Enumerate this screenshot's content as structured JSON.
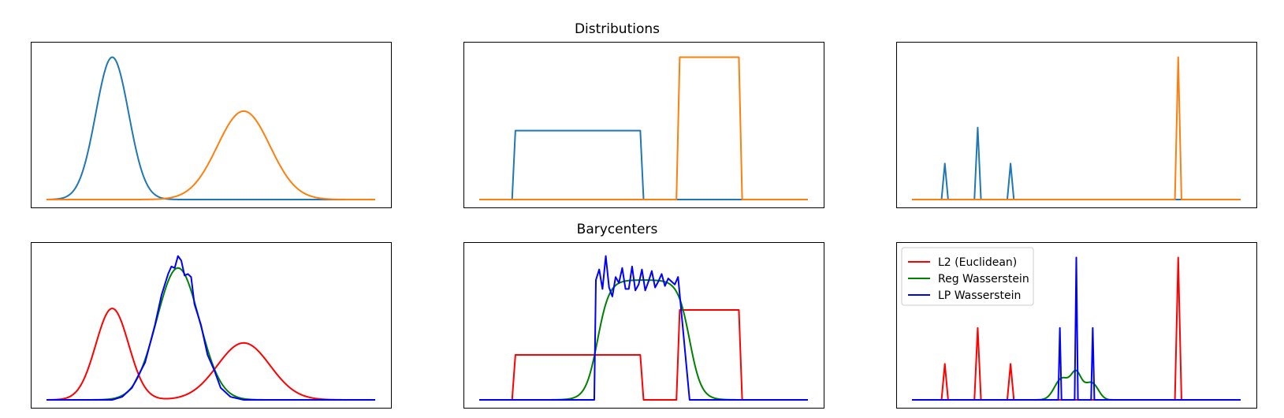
{
  "figure": {
    "row_titles": [
      "Distributions",
      "Barycenters"
    ]
  },
  "chart_data": [
    {
      "type": "line",
      "row": 0,
      "col": 0,
      "title": "",
      "xlabel": "",
      "ylabel": "",
      "xlim": [
        0,
        100
      ],
      "ylim": [
        0,
        1
      ],
      "grid": false,
      "legend": null,
      "series": [
        {
          "color": "#1f77b4",
          "kind": "gauss",
          "mean": 20,
          "sd": 5,
          "amp": 0.95
        },
        {
          "color": "#ff7f0e",
          "kind": "gauss",
          "mean": 60,
          "sd": 8,
          "amp": 0.59
        }
      ]
    },
    {
      "type": "line",
      "row": 0,
      "col": 1,
      "title": "",
      "xlabel": "",
      "ylabel": "",
      "xlim": [
        0,
        100
      ],
      "ylim": [
        0,
        1
      ],
      "grid": false,
      "legend": null,
      "series": [
        {
          "color": "#1f77b4",
          "points": [
            [
              0,
              0
            ],
            [
              10,
              0
            ],
            [
              11,
              0.46
            ],
            [
              49,
              0.46
            ],
            [
              50,
              0
            ],
            [
              100,
              0
            ]
          ]
        },
        {
          "color": "#ff7f0e",
          "points": [
            [
              0,
              0
            ],
            [
              60,
              0
            ],
            [
              61,
              0.95
            ],
            [
              79,
              0.95
            ],
            [
              80,
              0
            ],
            [
              100,
              0
            ]
          ]
        }
      ]
    },
    {
      "type": "line",
      "row": 0,
      "col": 2,
      "title": "",
      "xlabel": "",
      "ylabel": "",
      "xlim": [
        0,
        100
      ],
      "ylim": [
        0,
        1
      ],
      "grid": false,
      "legend": null,
      "series": [
        {
          "color": "#1f77b4",
          "points": [
            [
              0,
              0
            ],
            [
              9,
              0
            ],
            [
              10,
              0.24
            ],
            [
              11,
              0
            ],
            [
              19,
              0
            ],
            [
              20,
              0.48
            ],
            [
              21,
              0
            ],
            [
              29,
              0
            ],
            [
              30,
              0.24
            ],
            [
              31,
              0
            ],
            [
              100,
              0
            ]
          ]
        },
        {
          "color": "#ff7f0e",
          "points": [
            [
              0,
              0
            ],
            [
              80,
              0
            ],
            [
              81,
              0.95
            ],
            [
              82,
              0
            ],
            [
              100,
              0
            ]
          ]
        }
      ]
    },
    {
      "type": "line",
      "row": 1,
      "col": 0,
      "title": "",
      "xlabel": "",
      "ylabel": "",
      "xlim": [
        0,
        100
      ],
      "ylim": [
        0,
        1
      ],
      "grid": false,
      "legend": null,
      "series": [
        {
          "color": "#ff0000",
          "kind": "gauss-sum",
          "components": [
            [
              20,
              5,
              0.61
            ],
            [
              60,
              8,
              0.38
            ]
          ]
        },
        {
          "color": "#008000",
          "kind": "gauss",
          "mean": 40,
          "sd": 6.5,
          "amp": 0.88
        },
        {
          "color": "#0000ff",
          "points": [
            [
              0,
              0
            ],
            [
              20,
              0
            ],
            [
              23,
              0.02
            ],
            [
              26,
              0.08
            ],
            [
              30,
              0.25
            ],
            [
              33,
              0.5
            ],
            [
              35,
              0.7
            ],
            [
              37,
              0.84
            ],
            [
              38,
              0.89
            ],
            [
              39,
              0.88
            ],
            [
              40,
              0.96
            ],
            [
              41,
              0.93
            ],
            [
              42,
              0.83
            ],
            [
              43,
              0.84
            ],
            [
              44,
              0.82
            ],
            [
              45,
              0.64
            ],
            [
              47,
              0.5
            ],
            [
              49,
              0.3
            ],
            [
              51,
              0.2
            ],
            [
              53,
              0.08
            ],
            [
              56,
              0.02
            ],
            [
              60,
              0
            ],
            [
              100,
              0
            ]
          ]
        }
      ]
    },
    {
      "type": "line",
      "row": 1,
      "col": 1,
      "title": "",
      "xlabel": "",
      "ylabel": "",
      "xlim": [
        0,
        100
      ],
      "ylim": [
        0,
        1
      ],
      "grid": false,
      "legend": null,
      "series": [
        {
          "color": "#ff0000",
          "points": [
            [
              0,
              0
            ],
            [
              10,
              0
            ],
            [
              11,
              0.3
            ],
            [
              49,
              0.3
            ],
            [
              50,
              0
            ],
            [
              60,
              0
            ],
            [
              61,
              0.6
            ],
            [
              79,
              0.6
            ],
            [
              80,
              0
            ],
            [
              100,
              0
            ]
          ]
        },
        {
          "color": "#008000",
          "kind": "smooth-box",
          "left": 36,
          "right": 64,
          "width": 1.8,
          "amp": 0.8
        },
        {
          "color": "#0000ff",
          "points": [
            [
              0,
              0
            ],
            [
              35,
              0
            ],
            [
              35.5,
              0.8
            ],
            [
              36.5,
              0.87
            ],
            [
              37.5,
              0.74
            ],
            [
              38.5,
              0.96
            ],
            [
              39.5,
              0.75
            ],
            [
              40.5,
              0.69
            ],
            [
              41.5,
              0.82
            ],
            [
              42.5,
              0.78
            ],
            [
              43.5,
              0.88
            ],
            [
              44.5,
              0.74
            ],
            [
              45.5,
              0.74
            ],
            [
              46.5,
              0.89
            ],
            [
              47.5,
              0.73
            ],
            [
              48.5,
              0.77
            ],
            [
              49.5,
              0.87
            ],
            [
              50.5,
              0.73
            ],
            [
              51.5,
              0.79
            ],
            [
              52.5,
              0.86
            ],
            [
              53.5,
              0.75
            ],
            [
              54.5,
              0.79
            ],
            [
              55.5,
              0.84
            ],
            [
              56.5,
              0.76
            ],
            [
              57.5,
              0.81
            ],
            [
              58.5,
              0.79
            ],
            [
              59.5,
              0.77
            ],
            [
              60.5,
              0.82
            ],
            [
              64,
              0
            ],
            [
              100,
              0
            ]
          ]
        }
      ]
    },
    {
      "type": "line",
      "row": 1,
      "col": 2,
      "title": "",
      "xlabel": "",
      "ylabel": "",
      "xlim": [
        0,
        100
      ],
      "ylim": [
        0,
        1
      ],
      "grid": false,
      "legend": {
        "placement": "upper left",
        "entries": [
          {
            "label": "L2 (Euclidean)",
            "color": "#ff0000"
          },
          {
            "label": "Reg Wasserstein",
            "color": "#008000"
          },
          {
            "label": "LP Wasserstein",
            "color": "#0000ff"
          }
        ]
      },
      "series": [
        {
          "name": "L2 (Euclidean)",
          "color": "#ff0000",
          "points": [
            [
              0,
              0
            ],
            [
              9,
              0
            ],
            [
              10,
              0.24
            ],
            [
              11,
              0
            ],
            [
              19,
              0
            ],
            [
              20,
              0.48
            ],
            [
              21,
              0
            ],
            [
              29,
              0
            ],
            [
              30,
              0.24
            ],
            [
              31,
              0
            ],
            [
              80,
              0
            ],
            [
              81,
              0.95
            ],
            [
              82,
              0
            ],
            [
              100,
              0
            ]
          ]
        },
        {
          "name": "Reg Wasserstein",
          "color": "#008000",
          "kind": "gauss-sum",
          "components": [
            [
              45,
              2,
              0.08
            ],
            [
              47,
              2.5,
              0.08
            ],
            [
              50,
              1.5,
              0.14
            ],
            [
              54,
              2,
              0.1
            ],
            [
              56,
              1.5,
              0.03
            ]
          ]
        },
        {
          "name": "LP Wasserstein",
          "color": "#0000ff",
          "points": [
            [
              0,
              0
            ],
            [
              44.5,
              0
            ],
            [
              45,
              0.48
            ],
            [
              45.5,
              0
            ],
            [
              49.5,
              0
            ],
            [
              50,
              0.95
            ],
            [
              50.5,
              0
            ],
            [
              54.5,
              0
            ],
            [
              55,
              0.48
            ],
            [
              55.5,
              0
            ],
            [
              100,
              0
            ]
          ]
        }
      ]
    }
  ]
}
